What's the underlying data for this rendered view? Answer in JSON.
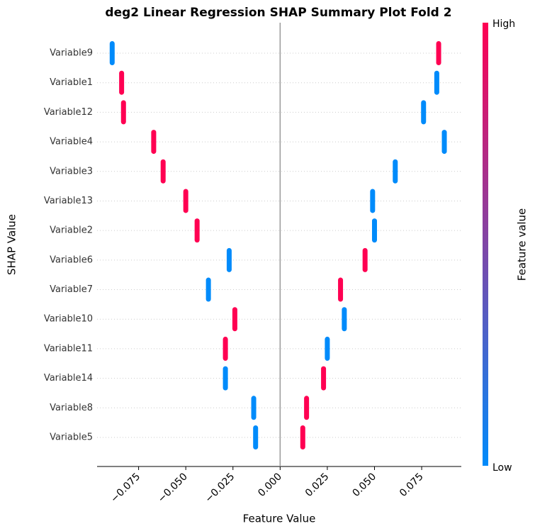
{
  "chart_data": {
    "type": "shap_summary",
    "title": "deg2 Linear Regression SHAP Summary Plot Fold 2",
    "x_label": "Feature Value",
    "y_label": "SHAP Value",
    "colorbar_label": "Feature value",
    "categories": [
      "Variable9",
      "Variable1",
      "Variable12",
      "Variable4",
      "Variable3",
      "Variable13",
      "Variable2",
      "Variable6",
      "Variable7",
      "Variable10",
      "Variable11",
      "Variable14",
      "Variable8",
      "Variable5"
    ],
    "series": [
      {
        "name": "High",
        "color": "#ff0052",
        "values": [
          0.084,
          -0.084,
          -0.083,
          -0.067,
          -0.062,
          -0.05,
          -0.044,
          0.045,
          0.032,
          -0.024,
          -0.029,
          0.023,
          0.014,
          0.012
        ]
      },
      {
        "name": "Low",
        "color": "#008bfb",
        "values": [
          -0.089,
          0.083,
          0.076,
          0.087,
          0.061,
          0.049,
          0.05,
          -0.027,
          -0.038,
          0.034,
          0.025,
          -0.029,
          -0.014,
          -0.013
        ]
      }
    ],
    "xlim": [
      -0.097,
      0.096
    ],
    "xticks": [
      {
        "value": -0.075,
        "label": "−0.075"
      },
      {
        "value": -0.05,
        "label": "−0.050"
      },
      {
        "value": -0.025,
        "label": "−0.025"
      },
      {
        "value": 0,
        "label": "0.000"
      },
      0.025,
      {
        "value": 0.05,
        "label": "0.050"
      },
      0.075
    ],
    "grid": true
  }
}
